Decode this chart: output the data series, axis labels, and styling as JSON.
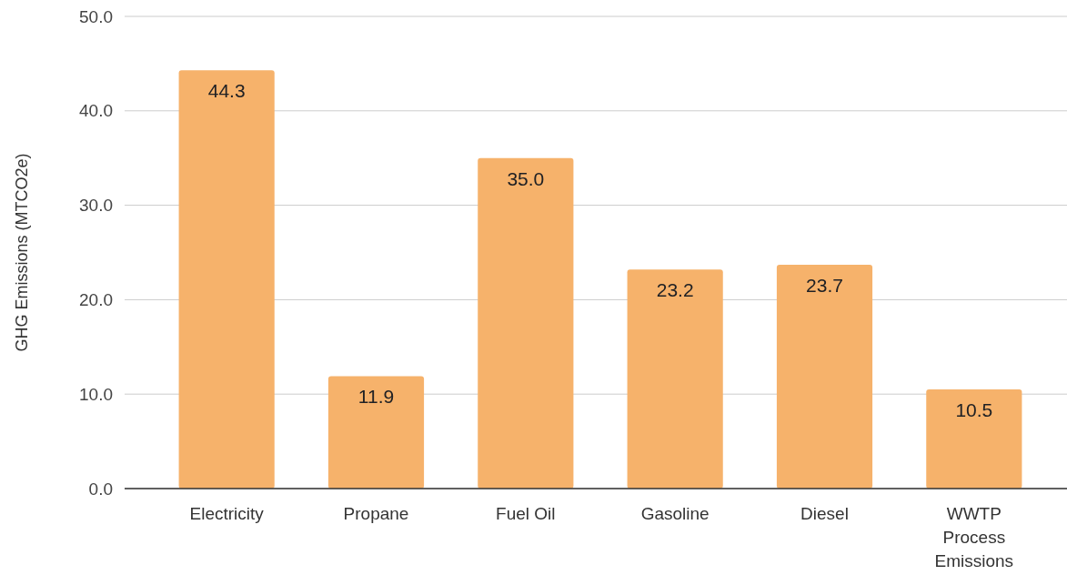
{
  "chart_data": {
    "type": "bar",
    "ylabel": "GHG Emissions (MTCO2e)",
    "categories": [
      "Electricity",
      "Propane",
      "Fuel Oil",
      "Gasoline",
      "Diesel",
      "WWTP Process Emissions"
    ],
    "values": [
      44.3,
      11.9,
      35.0,
      23.2,
      23.7,
      10.5
    ],
    "color": "#f6b26b",
    "ylim": [
      0,
      50
    ],
    "yticks": [
      {
        "value": 0,
        "label": "0.0"
      },
      {
        "value": 10,
        "label": "10.0"
      },
      {
        "value": 20,
        "label": "20.0"
      },
      {
        "value": 30,
        "label": "30.0"
      },
      {
        "value": 40,
        "label": "40.0"
      },
      {
        "value": 50,
        "label": "50.0"
      }
    ],
    "value_labels": [
      "44.3",
      "11.9",
      "35.0",
      "23.2",
      "23.7",
      "10.5"
    ],
    "grid": "y"
  }
}
